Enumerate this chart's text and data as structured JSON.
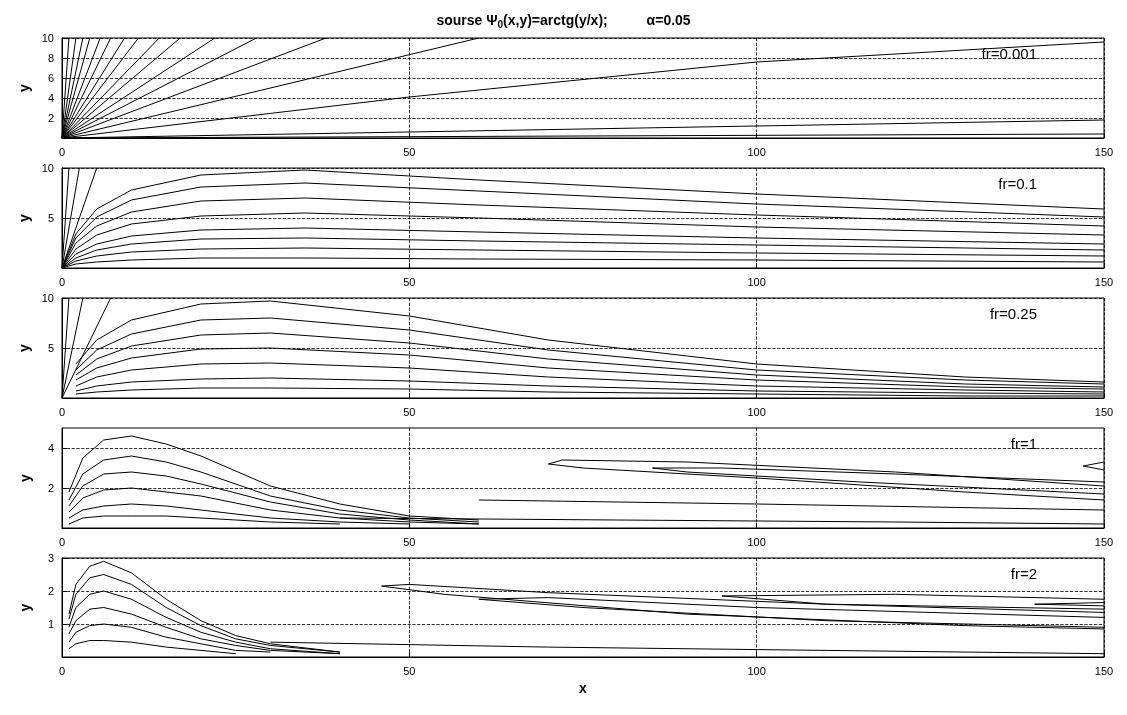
{
  "chart_data": [
    {
      "type": "line",
      "title": "sourse Ψ$_{0}$(x,y)=arctg(y/x);          α=0.05",
      "ylabel": "y",
      "annotations": [
        "fr=0.001"
      ],
      "xlim": [
        0,
        150
      ],
      "xticks": [
        0,
        50,
        100,
        150
      ],
      "ylim": [
        0,
        10
      ],
      "yticks": [
        2,
        4,
        6,
        8,
        10
      ],
      "grid": true,
      "color": "#000000",
      "line_style": "solid",
      "marker": "none",
      "series": [
        {
          "x": [
            0,
            50,
            100,
            150
          ],
          "values": [
            0,
            4.1,
            7.6,
            9.6
          ]
        },
        {
          "x": [
            0,
            150
          ],
          "values": [
            0,
            1.8
          ]
        },
        {
          "x": [
            0,
            150
          ],
          "values": [
            0,
            0.4
          ]
        },
        {
          "x": [
            0,
            60
          ],
          "values": [
            0,
            10
          ]
        },
        {
          "x": [
            0,
            38
          ],
          "values": [
            0,
            10
          ]
        },
        {
          "x": [
            0,
            28
          ],
          "values": [
            0,
            10
          ]
        },
        {
          "x": [
            0,
            22
          ],
          "values": [
            0,
            10
          ]
        },
        {
          "x": [
            0,
            17
          ],
          "values": [
            0,
            10
          ]
        },
        {
          "x": [
            0,
            14
          ],
          "values": [
            0,
            10
          ]
        },
        {
          "x": [
            0,
            11
          ],
          "values": [
            0,
            10
          ]
        },
        {
          "x": [
            0,
            9
          ],
          "values": [
            0,
            10
          ]
        },
        {
          "x": [
            0,
            7
          ],
          "values": [
            0,
            10
          ]
        },
        {
          "x": [
            0,
            5.5
          ],
          "values": [
            0,
            10
          ]
        },
        {
          "x": [
            0,
            4
          ],
          "values": [
            0,
            10
          ]
        },
        {
          "x": [
            0,
            3
          ],
          "values": [
            0,
            10
          ]
        },
        {
          "x": [
            0,
            2
          ],
          "values": [
            0,
            10
          ]
        },
        {
          "x": [
            0,
            1
          ],
          "values": [
            0,
            10
          ]
        }
      ]
    },
    {
      "type": "line",
      "ylabel": "y",
      "annotations": [
        "fr=0.1"
      ],
      "xlim": [
        0,
        150
      ],
      "xticks": [
        0,
        50,
        100,
        150
      ],
      "ylim": [
        0,
        10
      ],
      "yticks": [
        5,
        10
      ],
      "grid": true,
      "color": "#000000",
      "line_style": "solid",
      "marker": "none",
      "series": [
        {
          "x": [
            0,
            2,
            5,
            10,
            20,
            35,
            60,
            100,
            150
          ],
          "values": [
            0,
            0.4,
            0.6,
            0.8,
            1,
            1,
            0.9,
            0.8,
            0.6
          ]
        },
        {
          "x": [
            0,
            2,
            5,
            10,
            20,
            35,
            60,
            100,
            150
          ],
          "values": [
            0,
            0.7,
            1.2,
            1.6,
            1.9,
            2,
            1.8,
            1.5,
            1.2
          ]
        },
        {
          "x": [
            0,
            2,
            5,
            10,
            20,
            35,
            60,
            100,
            150
          ],
          "values": [
            0,
            1,
            1.8,
            2.4,
            2.9,
            3,
            2.7,
            2.3,
            1.8
          ]
        },
        {
          "x": [
            0,
            2,
            5,
            10,
            20,
            35,
            60,
            100,
            150
          ],
          "values": [
            0,
            1.4,
            2.4,
            3.2,
            3.8,
            4,
            3.6,
            3,
            2.4
          ]
        },
        {
          "x": [
            0,
            2,
            5,
            10,
            20,
            35,
            60,
            100,
            150
          ],
          "values": [
            0,
            1.9,
            3.3,
            4.4,
            5.2,
            5.5,
            5,
            4.1,
            3.3
          ]
        },
        {
          "x": [
            0,
            2,
            5,
            10,
            20,
            35,
            60,
            100,
            150
          ],
          "values": [
            0,
            2.5,
            4.2,
            5.6,
            6.7,
            7,
            6.3,
            5.3,
            4.2
          ]
        },
        {
          "x": [
            0,
            2,
            5,
            10,
            20,
            35,
            60,
            100,
            150
          ],
          "values": [
            0,
            3,
            5.1,
            6.8,
            8.1,
            8.5,
            7.7,
            6.4,
            5.1
          ]
        },
        {
          "x": [
            0,
            2,
            5,
            10,
            20,
            35,
            60,
            100,
            150
          ],
          "values": [
            0,
            3.4,
            5.9,
            7.8,
            9.3,
            9.8,
            8.8,
            7.4,
            5.9
          ]
        },
        {
          "x": [
            0,
            5
          ],
          "values": [
            0,
            10
          ]
        },
        {
          "x": [
            0,
            2.5
          ],
          "values": [
            0,
            10
          ]
        },
        {
          "x": [
            0,
            1
          ],
          "values": [
            0,
            10
          ]
        }
      ]
    },
    {
      "type": "line",
      "ylabel": "y",
      "annotations": [
        "fr=0.25"
      ],
      "xlim": [
        0,
        150
      ],
      "xticks": [
        0,
        50,
        100,
        150
      ],
      "ylim": [
        0,
        10
      ],
      "yticks": [
        5,
        10
      ],
      "grid": true,
      "color": "#000000",
      "line_style": "solid",
      "marker": "none",
      "series": [
        {
          "x": [
            2,
            5,
            10,
            20,
            30,
            50,
            70,
            100,
            130,
            150
          ],
          "values": [
            0.4,
            0.6,
            0.8,
            1,
            1,
            0.9,
            0.6,
            0.4,
            0.2,
            0.2
          ]
        },
        {
          "x": [
            2,
            5,
            10,
            20,
            30,
            50,
            70,
            100,
            130,
            150
          ],
          "values": [
            0.7,
            1.2,
            1.6,
            1.9,
            2,
            1.7,
            1.2,
            0.7,
            0.5,
            0.4
          ]
        },
        {
          "x": [
            2,
            5,
            10,
            20,
            30,
            50,
            70,
            100,
            130,
            150
          ],
          "values": [
            1.2,
            2.1,
            2.8,
            3.4,
            3.5,
            3,
            2.1,
            1.2,
            0.8,
            0.6
          ]
        },
        {
          "x": [
            2,
            5,
            10,
            20,
            30,
            50,
            70,
            100,
            130,
            150
          ],
          "values": [
            1.8,
            3,
            4,
            4.9,
            5,
            4.3,
            3,
            1.8,
            1.1,
            0.9
          ]
        },
        {
          "x": [
            2,
            5,
            10,
            20,
            30,
            50,
            70,
            100,
            130,
            150
          ],
          "values": [
            2.3,
            3.9,
            5.2,
            6.3,
            6.5,
            5.5,
            3.9,
            2.3,
            1.4,
            1.1
          ]
        },
        {
          "x": [
            2,
            5,
            10,
            20,
            30,
            50,
            70,
            100,
            130,
            150
          ],
          "values": [
            2.8,
            4.8,
            6.4,
            7.8,
            8,
            6.8,
            4.8,
            2.8,
            1.8,
            1.4
          ]
        },
        {
          "x": [
            2,
            5,
            10,
            20,
            30,
            50,
            70,
            100,
            130,
            150
          ],
          "values": [
            3.4,
            5.8,
            7.8,
            9.4,
            9.7,
            8.2,
            5.8,
            3.4,
            2.1,
            1.6
          ]
        },
        {
          "x": [
            0,
            7
          ],
          "values": [
            0,
            10
          ]
        },
        {
          "x": [
            0,
            3
          ],
          "values": [
            0,
            10
          ]
        },
        {
          "x": [
            0,
            1
          ],
          "values": [
            0,
            10
          ]
        }
      ]
    },
    {
      "type": "line",
      "ylabel": "y",
      "annotations": [
        "fr=1"
      ],
      "xlim": [
        0,
        150
      ],
      "xticks": [
        0,
        50,
        100,
        150
      ],
      "ylim": [
        0,
        5
      ],
      "yticks": [
        2,
        4
      ],
      "grid": true,
      "color": "#000000",
      "line_style": "solid",
      "marker": "none",
      "series": [
        {
          "x": [
            1,
            3,
            6,
            10,
            15,
            20,
            30,
            40
          ],
          "values": [
            0.2,
            0.5,
            0.6,
            0.6,
            0.6,
            0.5,
            0.3,
            0.2
          ]
        },
        {
          "x": [
            1,
            3,
            6,
            10,
            15,
            20,
            30,
            40,
            50
          ],
          "values": [
            0.5,
            0.9,
            1.1,
            1.2,
            1.1,
            0.9,
            0.5,
            0.3,
            0.2
          ]
        },
        {
          "x": [
            1,
            3,
            6,
            10,
            15,
            20,
            30,
            40,
            50,
            60
          ],
          "values": [
            0.8,
            1.5,
            1.9,
            2,
            1.8,
            1.6,
            0.9,
            0.5,
            0.3,
            0.2
          ]
        },
        {
          "x": [
            1,
            3,
            6,
            10,
            15,
            20,
            30,
            40,
            50,
            60
          ],
          "values": [
            1.1,
            2.1,
            2.7,
            2.8,
            2.6,
            2.2,
            1.3,
            0.7,
            0.4,
            0.2
          ]
        },
        {
          "x": [
            1,
            3,
            6,
            10,
            15,
            20,
            30,
            40,
            50,
            60
          ],
          "values": [
            1.4,
            2.7,
            3.4,
            3.6,
            3.3,
            2.8,
            1.6,
            0.9,
            0.5,
            0.3
          ]
        },
        {
          "x": [
            1,
            3,
            6,
            10,
            15,
            20,
            30,
            40,
            50,
            60
          ],
          "values": [
            1.8,
            3.5,
            4.4,
            4.6,
            4.2,
            3.6,
            2.1,
            1.2,
            0.6,
            0.4
          ]
        },
        {
          "x": [
            150,
            120,
            90,
            72,
            70,
            75,
            100,
            130,
            150
          ],
          "values": [
            2.1,
            2.8,
            3.3,
            3.4,
            3.2,
            3,
            2.5,
            1.8,
            1.4
          ]
        },
        {
          "x": [
            150,
            120,
            95,
            85,
            90,
            115,
            150
          ],
          "values": [
            2.3,
            2.7,
            3,
            3,
            2.8,
            2.3,
            1.7
          ]
        },
        {
          "x": [
            150,
            147,
            150
          ],
          "values": [
            3.3,
            3.1,
            2.9
          ]
        },
        {
          "x": [
            40,
            80,
            120,
            150
          ],
          "values": [
            0.5,
            0.4,
            0.3,
            0.2
          ]
        },
        {
          "x": [
            60,
            100,
            150
          ],
          "values": [
            1.4,
            1.2,
            0.9
          ]
        }
      ]
    },
    {
      "type": "line",
      "xlabel": "x",
      "ylabel": "y",
      "annotations": [
        "fr=2"
      ],
      "xlim": [
        0,
        150
      ],
      "xticks": [
        0,
        50,
        100,
        150
      ],
      "ylim": [
        0,
        3
      ],
      "yticks": [
        1,
        2,
        3
      ],
      "grid": true,
      "color": "#000000",
      "line_style": "solid",
      "marker": "none",
      "series": [
        {
          "x": [
            1,
            2,
            4,
            6,
            10,
            15,
            20,
            25
          ],
          "values": [
            0.25,
            0.4,
            0.5,
            0.5,
            0.45,
            0.3,
            0.2,
            0.1
          ]
        },
        {
          "x": [
            1,
            2,
            4,
            6,
            10,
            15,
            20,
            25,
            30
          ],
          "values": [
            0.45,
            0.75,
            0.95,
            1,
            0.9,
            0.6,
            0.4,
            0.2,
            0.15
          ]
        },
        {
          "x": [
            1,
            2,
            4,
            6,
            10,
            15,
            20,
            25,
            30,
            40
          ],
          "values": [
            0.7,
            1.1,
            1.45,
            1.5,
            1.3,
            0.9,
            0.55,
            0.35,
            0.2,
            0.1
          ]
        },
        {
          "x": [
            1,
            2,
            4,
            6,
            10,
            15,
            20,
            25,
            30,
            40
          ],
          "values": [
            0.9,
            1.5,
            1.9,
            2,
            1.75,
            1.2,
            0.75,
            0.45,
            0.25,
            0.1
          ]
        },
        {
          "x": [
            1,
            2,
            4,
            6,
            10,
            15,
            20,
            25,
            30,
            40
          ],
          "values": [
            1.15,
            1.9,
            2.4,
            2.5,
            2.2,
            1.5,
            0.95,
            0.55,
            0.35,
            0.15
          ]
        },
        {
          "x": [
            1,
            2,
            4,
            6,
            10,
            15,
            20,
            25,
            30,
            40
          ],
          "values": [
            1.3,
            2.2,
            2.75,
            2.9,
            2.55,
            1.75,
            1.1,
            0.65,
            0.4,
            0.15
          ]
        },
        {
          "x": [
            150,
            110,
            70,
            50,
            46,
            55,
            90,
            130,
            150
          ],
          "values": [
            1.35,
            1.6,
            1.95,
            2.2,
            2.15,
            1.9,
            1.3,
            0.95,
            0.85
          ]
        },
        {
          "x": [
            150,
            100,
            70,
            60,
            75,
            110,
            150
          ],
          "values": [
            1.2,
            1.5,
            1.8,
            1.75,
            1.5,
            1.1,
            0.9
          ]
        },
        {
          "x": [
            150,
            120,
            95,
            110,
            150
          ],
          "values": [
            1.75,
            1.9,
            1.85,
            1.6,
            1.45
          ]
        },
        {
          "x": [
            150,
            140,
            150
          ],
          "values": [
            1.65,
            1.6,
            1.55
          ]
        },
        {
          "x": [
            30,
            70,
            110,
            150
          ],
          "values": [
            0.45,
            0.3,
            0.2,
            0.1
          ]
        }
      ]
    }
  ]
}
